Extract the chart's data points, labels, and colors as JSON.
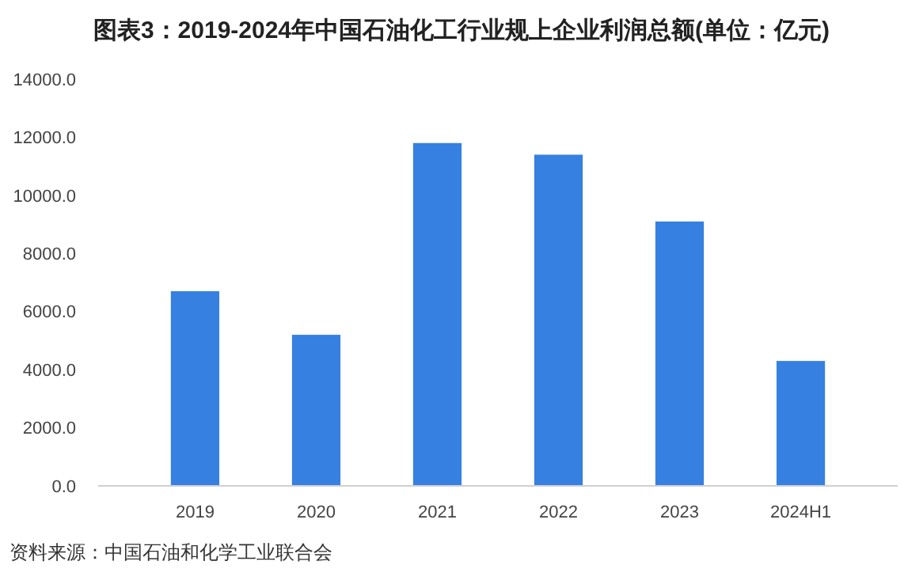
{
  "chart_data": {
    "type": "bar",
    "title": "图表3：2019-2024年中国石油化工行业规上企业利润总额(单位：亿元)",
    "categories": [
      "2019",
      "2020",
      "2021",
      "2022",
      "2023",
      "2024H1"
    ],
    "values": [
      6700,
      5200,
      11800,
      11400,
      9100,
      4300
    ],
    "color": "#3580e0",
    "ylim": [
      0,
      14000
    ],
    "yticks": [
      {
        "value": 0,
        "label": "0.0"
      },
      {
        "value": 2000,
        "label": "2000.0"
      },
      {
        "value": 4000,
        "label": "4000.0"
      },
      {
        "value": 6000,
        "label": "6000.0"
      },
      {
        "value": 8000,
        "label": "8000.0"
      },
      {
        "value": 10000,
        "label": "10000.0"
      },
      {
        "value": 12000,
        "label": "12000.0"
      },
      {
        "value": 14000,
        "label": "14000.0"
      }
    ],
    "grid": false,
    "annotations": [
      "资料来源：中国石油和化学工业联合会"
    ]
  }
}
